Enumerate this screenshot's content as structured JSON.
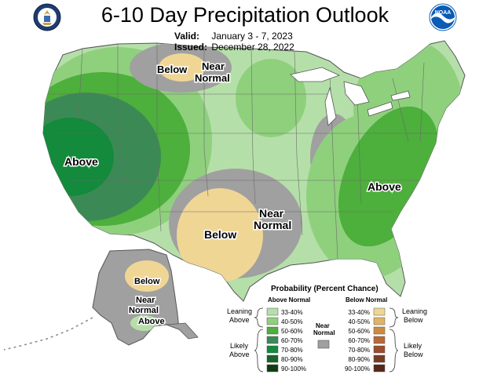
{
  "header": {
    "title": "6-10 Day Precipitation Outlook",
    "valid_label": "Valid:",
    "valid_value": "January 3 - 7, 2023",
    "issued_label": "Issued:",
    "issued_value": "December 28, 2022"
  },
  "logos": {
    "left": "department-of-commerce-seal",
    "right": "noaa-logo",
    "right_text": "NOAA"
  },
  "map_labels": {
    "west": "Above",
    "northern_plains_below": "Below",
    "northern_plains_near_1": "Near",
    "northern_plains_near_2": "Normal",
    "southern_plains_below": "Below",
    "southern_plains_near_1": "Near",
    "southern_plains_near_2": "Normal",
    "east": "Above",
    "alaska_below": "Below",
    "alaska_near_1": "Near",
    "alaska_near_2": "Normal",
    "alaska_above": "Above"
  },
  "legend": {
    "title": "Probability (Percent Chance)",
    "above_header": "Above Normal",
    "below_header": "Below Normal",
    "near_label_1": "Near",
    "near_label_2": "Normal",
    "leaning_above_1": "Leaning",
    "leaning_above_2": "Above",
    "likely_above_1": "Likely",
    "likely_above_2": "Above",
    "leaning_below_1": "Leaning",
    "leaning_below_2": "Below",
    "likely_below_1": "Likely",
    "likely_below_2": "Below",
    "above_bins": [
      {
        "label": "33-40%",
        "color": "#b5dfa9"
      },
      {
        "label": "40-50%",
        "color": "#8fd07d"
      },
      {
        "label": "50-60%",
        "color": "#4daf3c"
      },
      {
        "label": "60-70%",
        "color": "#3b8a55"
      },
      {
        "label": "70-80%",
        "color": "#138a3c"
      },
      {
        "label": "80-90%",
        "color": "#17632a"
      },
      {
        "label": "90-100%",
        "color": "#0f3b14"
      }
    ],
    "below_bins": [
      {
        "label": "33-40%",
        "color": "#f0d695"
      },
      {
        "label": "40-50%",
        "color": "#e2b466"
      },
      {
        "label": "50-60%",
        "color": "#cf8a3e"
      },
      {
        "label": "60-70%",
        "color": "#b86a35"
      },
      {
        "label": "70-80%",
        "color": "#9b4d2c"
      },
      {
        "label": "80-90%",
        "color": "#7a3b24"
      },
      {
        "label": "90-100%",
        "color": "#56271a"
      }
    ],
    "near_color": "#a0a0a0"
  }
}
